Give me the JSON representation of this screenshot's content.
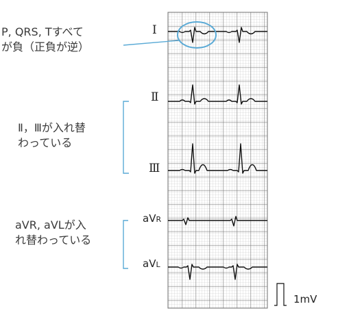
{
  "annotations": {
    "lead1_note": [
      "P, QRS, Tすべて",
      "が負（正負が逆）"
    ],
    "lead23_note": [
      "Ⅱ，Ⅲが入れ替",
      "わっている"
    ],
    "avr_avl_note": [
      "aVR, aVLが入",
      "れ替わっている"
    ]
  },
  "leads": {
    "I": "Ⅰ",
    "II": "Ⅱ",
    "III": "Ⅲ",
    "aVR": {
      "main": "aV",
      "sub": "R"
    },
    "aVL": {
      "main": "aV",
      "sub": "L"
    }
  },
  "calibration": "1mV",
  "colors": {
    "grid_major": "#6f6f6f",
    "grid_minor": "#c4c4c4",
    "trace": "#111111",
    "annotation_line": "#5aaad6",
    "highlight_circle": "#5aaad6"
  }
}
